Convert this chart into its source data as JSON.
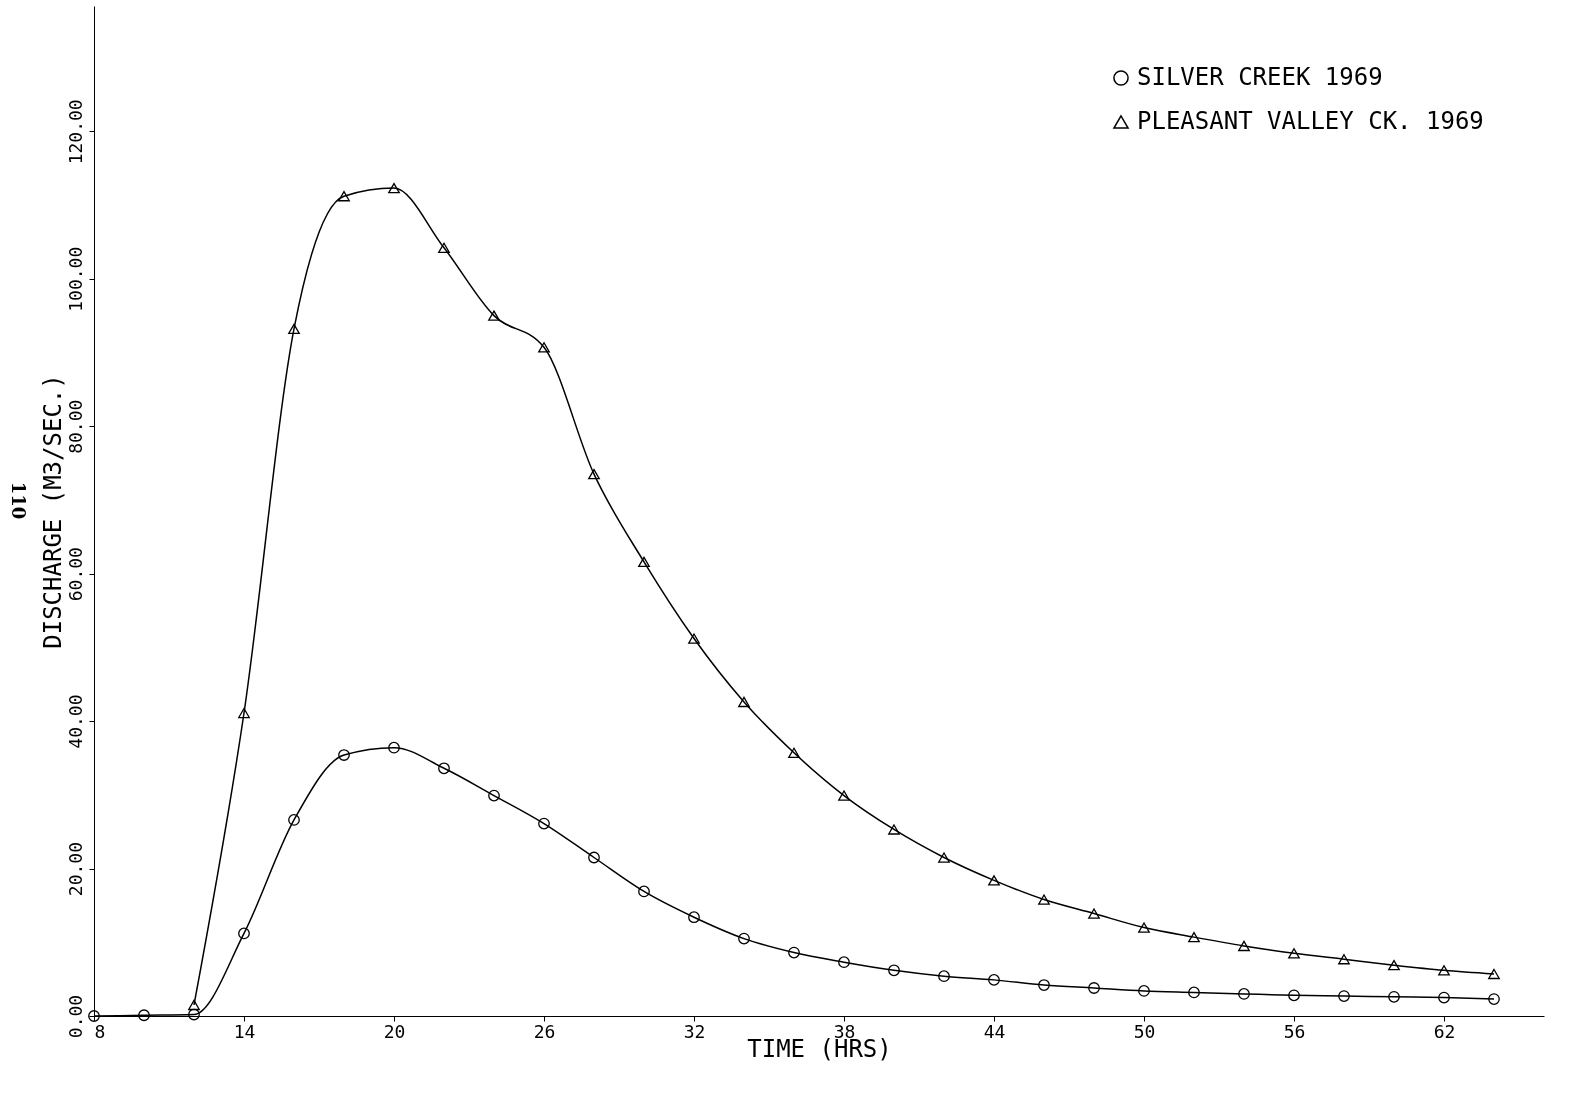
{
  "chart_data": {
    "type": "line",
    "xlabel": "TIME (HRS)",
    "ylabel": "DISCHARGE (M3/SEC.)",
    "annotations": [
      "110"
    ],
    "xlim": [
      8,
      66
    ],
    "xticks": [
      8,
      14,
      20,
      26,
      32,
      38,
      44,
      50,
      56,
      62
    ],
    "ylim": [
      0,
      137
    ],
    "yticks": [
      {
        "value": 0,
        "label": "0.00"
      },
      {
        "value": 20,
        "label": "20.00"
      },
      {
        "value": 40,
        "label": "40.00"
      },
      {
        "value": 60,
        "label": "60.00"
      },
      {
        "value": 80,
        "label": "80.00"
      },
      {
        "value": 100,
        "label": "100.00"
      },
      {
        "value": 120,
        "label": "120.00"
      }
    ],
    "grid": false,
    "legend": "top right",
    "line_style": "solid",
    "series": [
      {
        "name": "SILVER CREEK 1969",
        "color": "#000000",
        "marker": "circle",
        "x": [
          8,
          10,
          12,
          14,
          16,
          18,
          20,
          22,
          24,
          26,
          28,
          30,
          32,
          34,
          36,
          38,
          40,
          42,
          44,
          46,
          48,
          50,
          52,
          54,
          56,
          58,
          60,
          62,
          64
        ],
        "values": [
          0,
          0.1,
          0.2,
          11.2,
          26.6,
          35.4,
          36.4,
          33.6,
          29.9,
          26.1,
          21.5,
          16.9,
          13.4,
          10.5,
          8.6,
          7.3,
          6.2,
          5.4,
          4.9,
          4.2,
          3.8,
          3.4,
          3.2,
          3.0,
          2.8,
          2.7,
          2.6,
          2.5,
          2.3
        ]
      },
      {
        "name": "PLEASANT VALLEY CK. 1969",
        "color": "#000000",
        "marker": "triangle",
        "x": [
          12,
          14,
          16,
          18,
          20,
          22,
          24,
          26,
          28,
          30,
          32,
          34,
          36,
          38,
          40,
          42,
          44,
          46,
          48,
          50,
          52,
          54,
          56,
          58,
          60,
          62,
          64
        ],
        "values": [
          1.5,
          41.1,
          93.2,
          111.2,
          112.3,
          104.2,
          95.0,
          90.7,
          73.5,
          61.6,
          51.2,
          42.6,
          35.7,
          29.9,
          25.3,
          21.5,
          18.4,
          15.8,
          13.9,
          12.0,
          10.7,
          9.5,
          8.5,
          7.7,
          6.9,
          6.2,
          5.7
        ]
      }
    ]
  }
}
